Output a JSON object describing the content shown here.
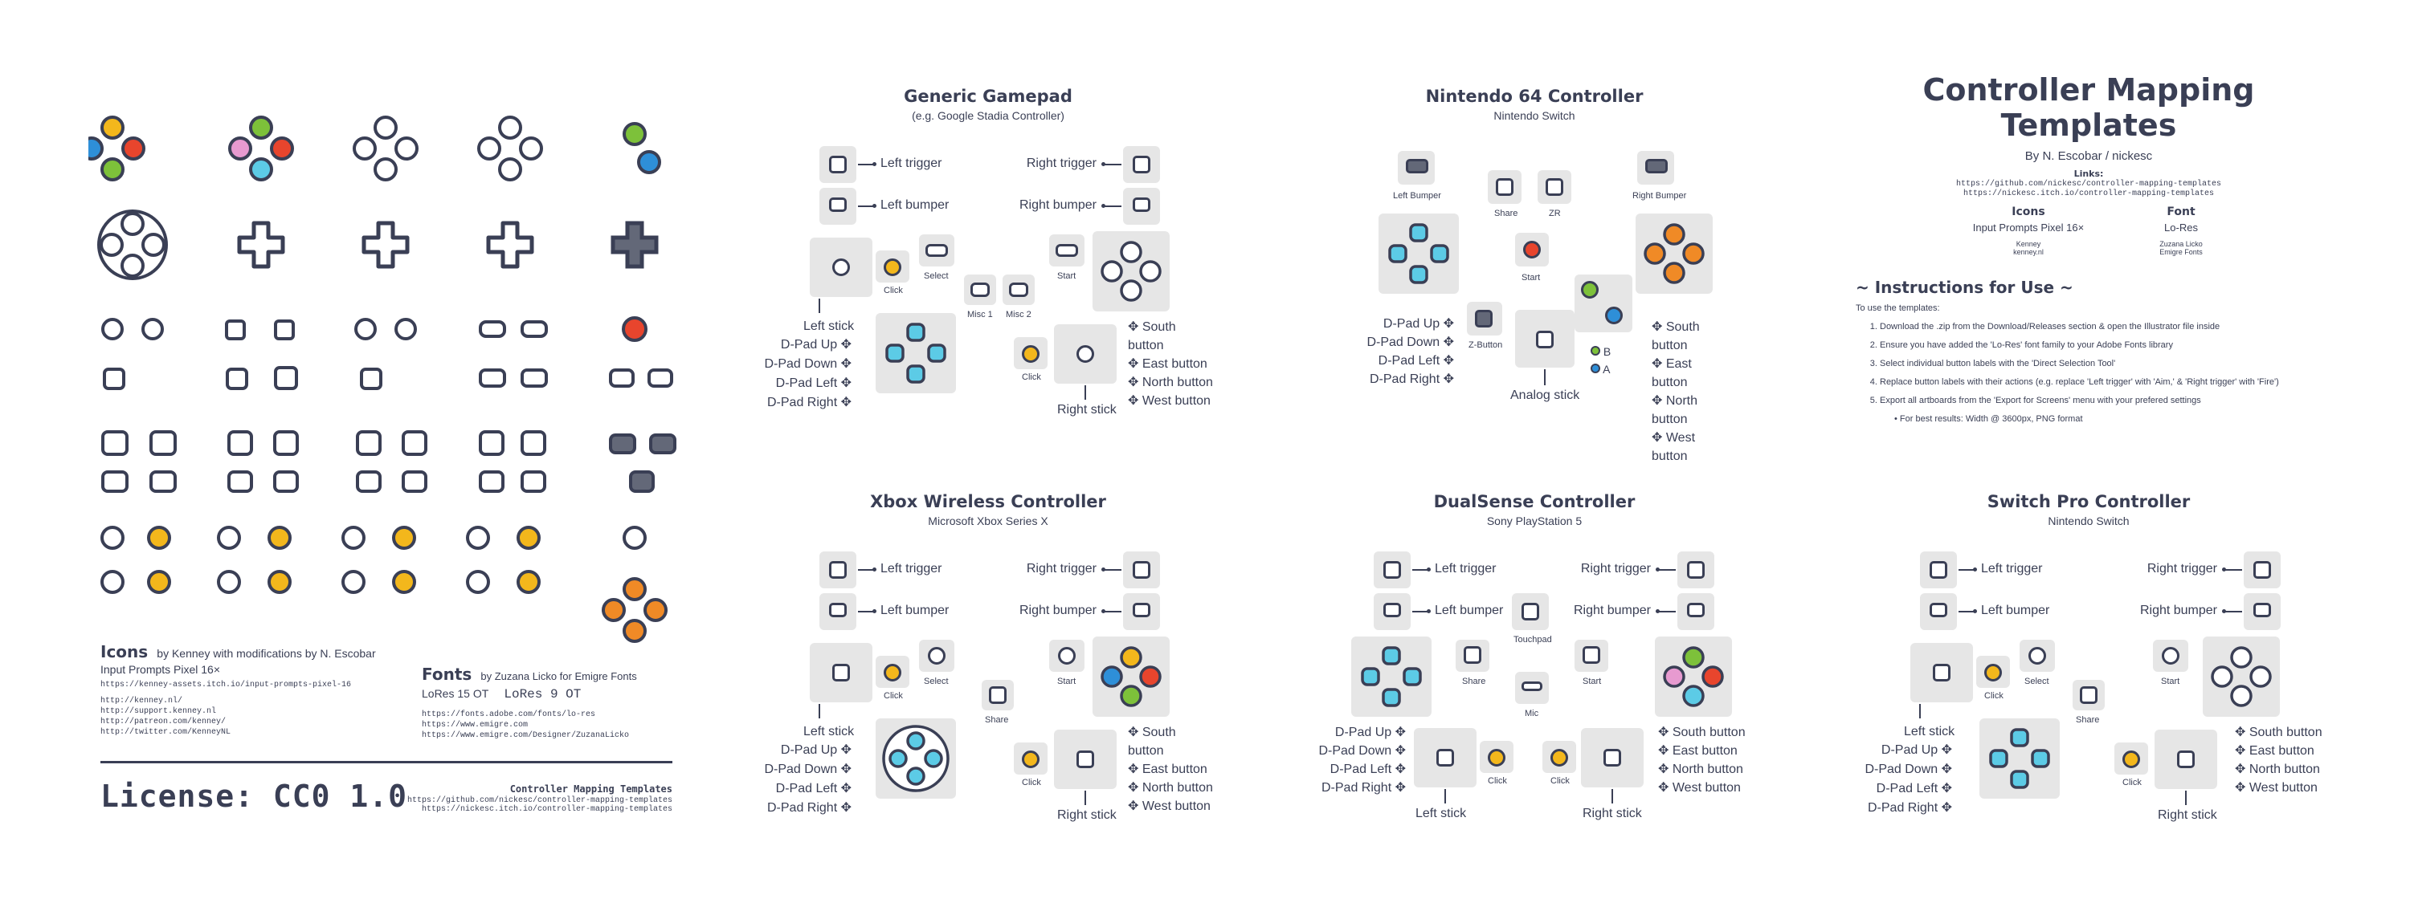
{
  "colors": {
    "ink": "#3a3f55",
    "tile": "#e6e6e6",
    "yellow": "#f3b71c",
    "red": "#e8452d",
    "green": "#7dc13a",
    "blue": "#2e8fd8",
    "pink": "#e79ad0",
    "orange": "#f08a26",
    "cyan": "#5ccbe6"
  },
  "left_panel": {
    "icons_heading": "Icons",
    "icons_by": "by Kenney with modifications by N. Escobar",
    "icons_pack": "Input Prompts Pixel 16×",
    "icons_link": "https://kenney-assets.itch.io/input-prompts-pixel-16",
    "kenney_links": [
      "http://kenney.nl/",
      "http://support.kenney.nl",
      "http://patreon.com/kenney/",
      "http://twitter.com/KenneyNL"
    ],
    "fonts_heading": "Fonts",
    "fonts_by": "by Zuzana Licko for Emigre Fonts",
    "font1": "LoRes 15 OT",
    "font2": "LoRes 9 OT",
    "font_links": [
      "https://fonts.adobe.com/fonts/lo-res",
      "https://www.emigre.com",
      "https://www.emigre.com/Designer/ZuzanaLicko"
    ],
    "license": "License: CC0 1.0",
    "template_title": "Controller Mapping Templates",
    "template_links": [
      "https://github.com/nickesc/controller-mapping-templates",
      "https://nickesc.itch.io/controller-mapping-templates"
    ]
  },
  "common": {
    "left_trigger": "Left trigger",
    "right_trigger": "Right trigger",
    "left_bumper": "Left bumper",
    "right_bumper": "Right bumper",
    "left_stick": "Left stick",
    "right_stick": "Right stick",
    "dpad": [
      "D-Pad Up",
      "D-Pad Down",
      "D-Pad Left",
      "D-Pad Right"
    ],
    "face": [
      "South button",
      "East button",
      "North button",
      "West button"
    ],
    "click": "Click",
    "select": "Select",
    "start": "Start",
    "share": "Share"
  },
  "generic": {
    "title": "Generic Gamepad",
    "subtitle": "(e.g. Google Stadia Controller)",
    "misc1": "Misc 1",
    "misc2": "Misc 2"
  },
  "n64": {
    "title": "Nintendo 64 Controller",
    "subtitle": "Nintendo Switch",
    "left_bumper": "Left Bumper",
    "right_bumper": "Right Bumper",
    "share": "Share",
    "zr": "ZR",
    "start": "Start",
    "z_button": "Z-Button",
    "analog": "Analog stick",
    "b": "B",
    "a": "A"
  },
  "xbox": {
    "title": "Xbox Wireless Controller",
    "subtitle": "Microsoft Xbox Series X"
  },
  "dualsense": {
    "title": "DualSense Controller",
    "subtitle": "Sony PlayStation 5",
    "touchpad": "Touchpad",
    "mic": "Mic"
  },
  "switchpro": {
    "title": "Switch Pro Controller",
    "subtitle": "Nintendo Switch"
  },
  "info": {
    "title_line1": "Controller Mapping",
    "title_line2": "Templates",
    "author": "By N. Escobar / nickesc",
    "links_label": "Links:",
    "links": [
      "https://github.com/nickesc/controller-mapping-templates",
      "https://nickesc.itch.io/controller-mapping-templates"
    ],
    "icons_label": "Icons",
    "icons_value": "Input Prompts Pixel 16×",
    "icons_credit": [
      "Kenney",
      "kenney.nl"
    ],
    "font_label": "Font",
    "font_value": "Lo-Res",
    "font_credit": [
      "Zuzana Licko",
      "Emigre Fonts"
    ],
    "instructions_heading": "~ Instructions for Use ~",
    "intro": "To use the templates:",
    "steps": [
      "Download the .zip from the Download/Releases section & open the Illustrator file inside",
      "Ensure you have added the 'Lo-Res' font family to your Adobe Fonts library",
      "Select individual button labels with the 'Direct Selection Tool'",
      "Replace button labels with their actions (e.g. replace 'Left trigger' with 'Aim,' & 'Right trigger' with 'Fire')",
      "Export all artboards from the 'Export for Screens' menu with your prefered settings"
    ],
    "bullet": "For best results: Width @ 3600px, PNG format"
  }
}
